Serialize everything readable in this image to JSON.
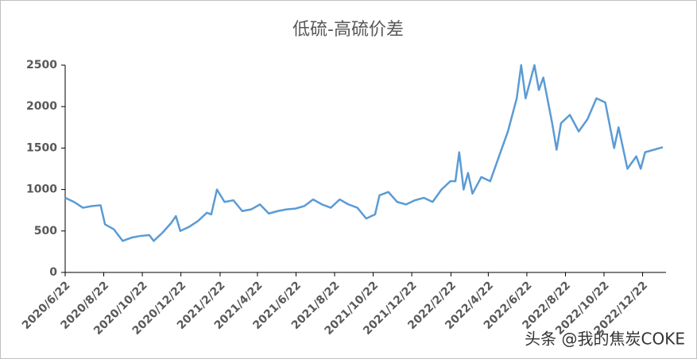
{
  "chart_data": {
    "type": "line",
    "title": "低硫-高硫价差",
    "annotation": "头条 @我的焦炭COKE",
    "x": [
      "2020/6/22",
      "2020/7/6",
      "2020/7/20",
      "2020/8/3",
      "2020/8/17",
      "2020/8/24",
      "2020/9/7",
      "2020/9/21",
      "2020/10/5",
      "2020/10/19",
      "2020/11/2",
      "2020/11/9",
      "2020/11/23",
      "2020/12/7",
      "2020/12/14",
      "2020/12/21",
      "2021/1/4",
      "2021/1/18",
      "2021/2/1",
      "2021/2/8",
      "2021/2/17",
      "2021/3/1",
      "2021/3/15",
      "2021/3/29",
      "2021/4/12",
      "2021/4/26",
      "2021/5/10",
      "2021/5/24",
      "2021/6/7",
      "2021/6/21",
      "2021/7/5",
      "2021/7/19",
      "2021/8/2",
      "2021/8/16",
      "2021/8/30",
      "2021/9/13",
      "2021/9/27",
      "2021/10/11",
      "2021/10/25",
      "2021/11/1",
      "2021/11/15",
      "2021/11/29",
      "2021/12/13",
      "2021/12/27",
      "2022/1/10",
      "2022/1/24",
      "2022/2/7",
      "2022/2/21",
      "2022/3/1",
      "2022/3/7",
      "2022/3/14",
      "2022/3/21",
      "2022/3/28",
      "2022/4/11",
      "2022/4/25",
      "2022/5/9",
      "2022/5/23",
      "2022/6/6",
      "2022/6/13",
      "2022/6/20",
      "2022/7/4",
      "2022/7/11",
      "2022/7/18",
      "2022/8/1",
      "2022/8/8",
      "2022/8/15",
      "2022/8/29",
      "2022/9/12",
      "2022/9/26",
      "2022/10/10",
      "2022/10/24",
      "2022/11/7",
      "2022/11/14",
      "2022/11/28",
      "2022/12/12",
      "2022/12/19",
      "2022/12/26",
      "2023/1/9",
      "2023/1/23"
    ],
    "series": [
      {
        "name": "低硫-高硫价差",
        "color": "#5b9bd5",
        "values": [
          900,
          850,
          780,
          800,
          810,
          580,
          520,
          380,
          420,
          440,
          450,
          380,
          480,
          600,
          680,
          500,
          550,
          620,
          720,
          700,
          1000,
          850,
          870,
          740,
          760,
          820,
          710,
          740,
          760,
          770,
          800,
          880,
          820,
          780,
          880,
          820,
          780,
          650,
          700,
          930,
          970,
          850,
          820,
          870,
          900,
          850,
          1000,
          1100,
          1100,
          1450,
          1000,
          1200,
          950,
          1150,
          1100,
          1400,
          1700,
          2100,
          2500,
          2100,
          2500,
          2200,
          2350,
          1800,
          1480,
          1800,
          1900,
          1700,
          1850,
          2100,
          2050,
          1500,
          1750,
          1250,
          1400,
          1250,
          1450,
          1480,
          1510
        ]
      }
    ],
    "xlim": [
      "2020/6/22",
      "2023/1/28"
    ],
    "xticks": [
      "2020/6/22",
      "2020/8/22",
      "2020/10/22",
      "2020/12/22",
      "2021/2/22",
      "2021/4/22",
      "2021/6/22",
      "2021/8/22",
      "2021/10/22",
      "2021/12/22",
      "2022/2/22",
      "2022/4/22",
      "2022/6/22",
      "2022/8/22",
      "2022/10/22",
      "2022/12/22"
    ],
    "ylim": [
      0,
      2500
    ],
    "yticks": [
      0,
      500,
      1000,
      1500,
      2000,
      2500
    ],
    "grid": false
  }
}
